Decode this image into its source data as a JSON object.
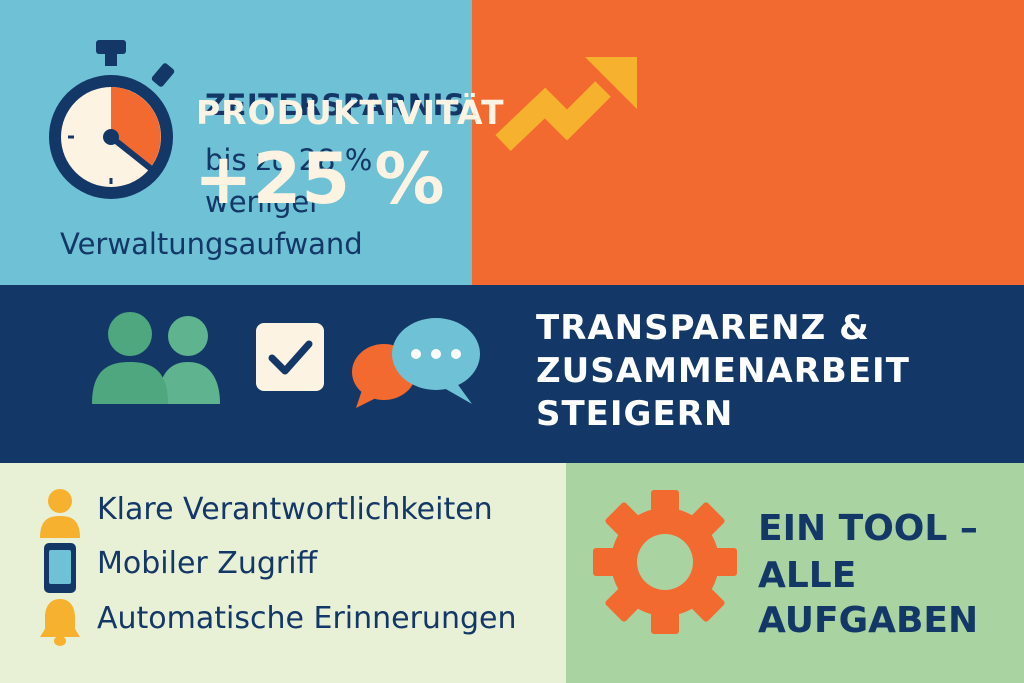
{
  "time_panel": {
    "title": "ZEITERSPARNIS",
    "line1": "bis zu 28 %",
    "line2": "weniger",
    "line3": "Verwaltungsaufwand",
    "icon": "stopwatch-icon"
  },
  "productivity_panel": {
    "title": "PRODUKTIVITÄT",
    "value": "+25 %",
    "icon": "trend-arrow-icon"
  },
  "team_panel": {
    "line1": "TRANSPARENZ &",
    "line2": "ZUSAMMENARBEIT",
    "line3": "STEIGERN",
    "icons": [
      "people-icon",
      "checkbox-icon",
      "chat-bubbles-icon"
    ]
  },
  "features_panel": {
    "items": [
      {
        "label": "Klare Verantwortlichkeiten",
        "icon": "person-icon"
      },
      {
        "label": "Mobiler Zugriff",
        "icon": "smartphone-icon"
      },
      {
        "label": "Automatische Erinnerungen",
        "icon": "bell-icon"
      }
    ]
  },
  "tool_panel": {
    "line1": "EIN TOOL –",
    "line2": "ALLE",
    "line3": "AUFGABEN",
    "icon": "gear-icon"
  },
  "colors": {
    "navy": "#133766",
    "sky": "#6FC1D6",
    "orange": "#F26A30",
    "green": "#A9D3A0",
    "cream": "#E8F0D6",
    "yellow": "#F6B12E",
    "teal": "#4FA77F"
  }
}
